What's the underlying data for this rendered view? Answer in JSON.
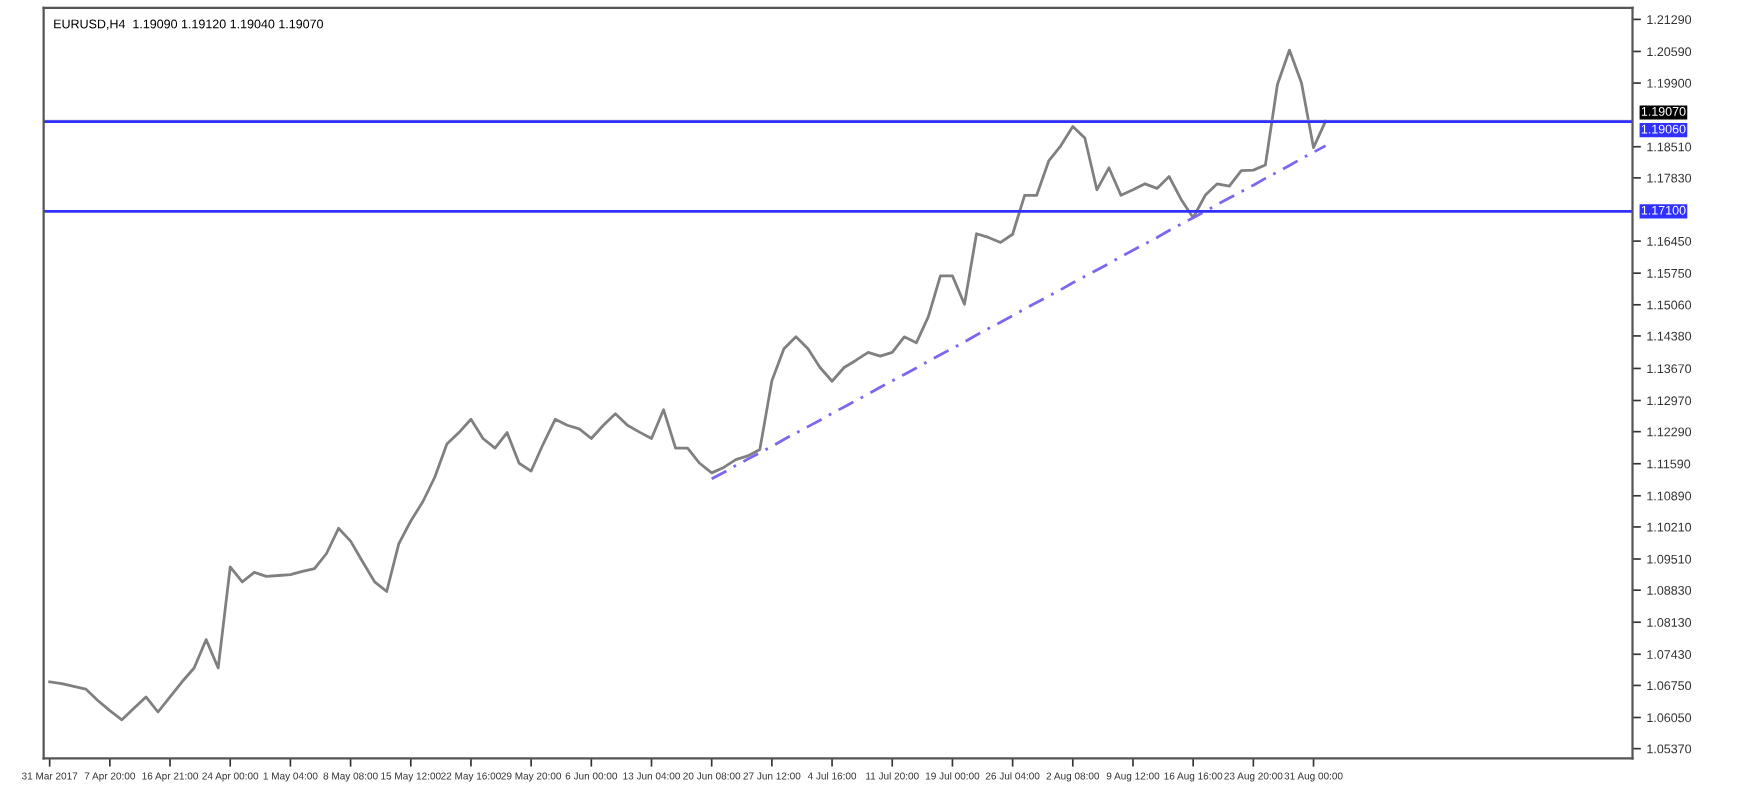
{
  "chart_data": {
    "type": "line",
    "title": "EURUSD,H4  1.19090 1.19120 1.19040 1.19070",
    "categories": [
      "31 Mar 2017",
      null,
      null,
      null,
      null,
      "7 Apr 20:00",
      null,
      null,
      null,
      null,
      "16 Apr 21:00",
      null,
      null,
      null,
      null,
      "24 Apr 00:00",
      null,
      null,
      null,
      null,
      "1 May 04:00",
      null,
      null,
      null,
      null,
      "8 May 08:00",
      null,
      null,
      null,
      null,
      "15 May 12:00",
      null,
      null,
      null,
      null,
      "22 May 16:00",
      null,
      null,
      null,
      null,
      "29 May 20:00",
      null,
      null,
      null,
      null,
      "6 Jun 00:00",
      null,
      null,
      null,
      null,
      "13 Jun 04:00",
      null,
      null,
      null,
      null,
      "20 Jun 08:00",
      null,
      null,
      null,
      null,
      "27 Jun 12:00",
      null,
      null,
      null,
      null,
      "4 Jul 16:00",
      null,
      null,
      null,
      null,
      "11 Jul 20:00",
      null,
      null,
      null,
      null,
      "19 Jul 00:00",
      null,
      null,
      null,
      null,
      "26 Jul 04:00",
      null,
      null,
      null,
      null,
      "2 Aug 08:00",
      null,
      null,
      null,
      null,
      "9 Aug 12:00",
      null,
      null,
      null,
      null,
      "16 Aug 16:00",
      null,
      null,
      null,
      null,
      "23 Aug 20:00",
      null,
      null,
      null,
      null,
      "31 Aug 00:00",
      null,
      null,
      null,
      null,
      null,
      null,
      null,
      null,
      null,
      null,
      null,
      null,
      null,
      null,
      null,
      null,
      null,
      null,
      null,
      null,
      null,
      null,
      null,
      null,
      null,
      null
    ],
    "series": [
      {
        "color": "#808080",
        "values": [
          1.0683,
          1.0679,
          1.0673,
          1.0667,
          1.0642,
          1.062,
          1.06,
          1.0625,
          1.065,
          1.0617,
          1.065,
          1.0683,
          1.0713,
          1.0775,
          1.0713,
          1.0934,
          1.0901,
          1.0922,
          1.0913,
          1.0915,
          1.0917,
          1.0924,
          1.093,
          1.0963,
          1.1018,
          1.099,
          1.0945,
          1.0901,
          1.088,
          1.0984,
          1.1034,
          1.1076,
          1.113,
          1.1202,
          1.1227,
          1.1256,
          1.1214,
          1.1193,
          1.1227,
          1.116,
          1.1143,
          1.1202,
          1.1256,
          1.1243,
          1.1235,
          1.1214,
          1.1243,
          1.1268,
          1.1243,
          1.1228,
          1.1214,
          1.1277,
          1.1193,
          1.1193,
          1.116,
          1.1139,
          1.1151,
          1.1168,
          1.1176,
          1.119,
          1.134,
          1.141,
          1.1436,
          1.141,
          1.1369,
          1.1339,
          1.1369,
          1.1385,
          1.1402,
          1.1394,
          1.1402,
          1.1436,
          1.1423,
          1.148,
          1.1569,
          1.1569,
          1.1507,
          1.1661,
          1.1653,
          1.1642,
          1.166,
          1.1745,
          1.1745,
          1.182,
          1.1853,
          1.1895,
          1.187,
          1.1757,
          1.1805,
          1.1745,
          1.1757,
          1.177,
          1.176,
          1.1786,
          1.1736,
          1.1696,
          1.1745,
          1.177,
          1.1765,
          1.1799,
          1.18,
          1.1811,
          1.1987,
          1.2062,
          1.199,
          1.1849,
          1.1907,
          null,
          null,
          null,
          null,
          null,
          null,
          null,
          null,
          null,
          null,
          null,
          null,
          null,
          null,
          null,
          null,
          null,
          null,
          null,
          null,
          null,
          null,
          null,
          null,
          null
        ]
      },
      {
        "color": "#7b68ee",
        "line_style": "dashed",
        "values": [
          null,
          null,
          null,
          null,
          null,
          null,
          null,
          null,
          null,
          null,
          null,
          null,
          null,
          null,
          null,
          null,
          null,
          null,
          null,
          null,
          null,
          null,
          null,
          null,
          null,
          null,
          null,
          null,
          null,
          null,
          null,
          null,
          null,
          null,
          null,
          null,
          null,
          null,
          null,
          null,
          null,
          null,
          null,
          null,
          null,
          null,
          null,
          null,
          null,
          null,
          null,
          null,
          null,
          null,
          null,
          1.1126,
          1.114,
          1.1155,
          1.1169,
          1.1183,
          1.1197,
          1.1212,
          1.1226,
          1.124,
          1.1254,
          1.1269,
          1.1283,
          1.1297,
          1.1311,
          1.1326,
          1.134,
          1.1354,
          1.1368,
          1.1383,
          1.1397,
          1.1411,
          1.1425,
          1.144,
          1.1454,
          1.1468,
          1.1482,
          1.1497,
          1.1511,
          1.1525,
          1.1539,
          1.1554,
          1.1568,
          1.1582,
          1.1596,
          1.1611,
          1.1625,
          1.1639,
          1.1653,
          1.1668,
          1.1682,
          1.1696,
          1.171,
          1.1725,
          1.1739,
          1.1753,
          1.1767,
          1.1782,
          1.1796,
          1.181,
          1.1825,
          1.1839,
          1.1853,
          null,
          null,
          null,
          null,
          null,
          null,
          null,
          null,
          null,
          null,
          null,
          null,
          null,
          null,
          null,
          null,
          null,
          null,
          null,
          null,
          null,
          null,
          null,
          null,
          null
        ]
      }
    ],
    "ylim": [
      1.0516,
      1.2154
    ],
    "yticks": [
      {
        "value": 1.2129,
        "label": "1.21290"
      },
      {
        "value": 1.2059,
        "label": "1.20590"
      },
      {
        "value": 1.199,
        "label": "1.19900"
      },
      {
        "value": 1.1851,
        "label": "1.18510"
      },
      {
        "value": 1.1783,
        "label": "1.17830"
      },
      {
        "value": 1.1645,
        "label": "1.16450"
      },
      {
        "value": 1.1575,
        "label": "1.15750"
      },
      {
        "value": 1.1506,
        "label": "1.15060"
      },
      {
        "value": 1.1438,
        "label": "1.14380"
      },
      {
        "value": 1.1367,
        "label": "1.13670"
      },
      {
        "value": 1.1297,
        "label": "1.12970"
      },
      {
        "value": 1.1229,
        "label": "1.12290"
      },
      {
        "value": 1.1159,
        "label": "1.11590"
      },
      {
        "value": 1.1089,
        "label": "1.10890"
      },
      {
        "value": 1.1021,
        "label": "1.10210"
      },
      {
        "value": 1.0951,
        "label": "1.09510"
      },
      {
        "value": 1.0883,
        "label": "1.08830"
      },
      {
        "value": 1.0813,
        "label": "1.08130"
      },
      {
        "value": 1.0743,
        "label": "1.07430"
      },
      {
        "value": 1.0675,
        "label": "1.06750"
      },
      {
        "value": 1.0605,
        "label": "1.06050"
      },
      {
        "value": 1.0537,
        "label": "1.05370"
      }
    ],
    "ref_lines": [
      {
        "axis": "y",
        "value": 1.1907,
        "label": "1.19070",
        "color": "#c0c0c0"
      },
      {
        "axis": "y",
        "value": 1.1906,
        "label": "1.19060",
        "color": "#3030ff"
      },
      {
        "axis": "y",
        "value": 1.171,
        "label": "1.17100",
        "color": "#3030ff"
      }
    ],
    "grid": false,
    "legend": false,
    "marker": "none",
    "line_style": "solid"
  }
}
